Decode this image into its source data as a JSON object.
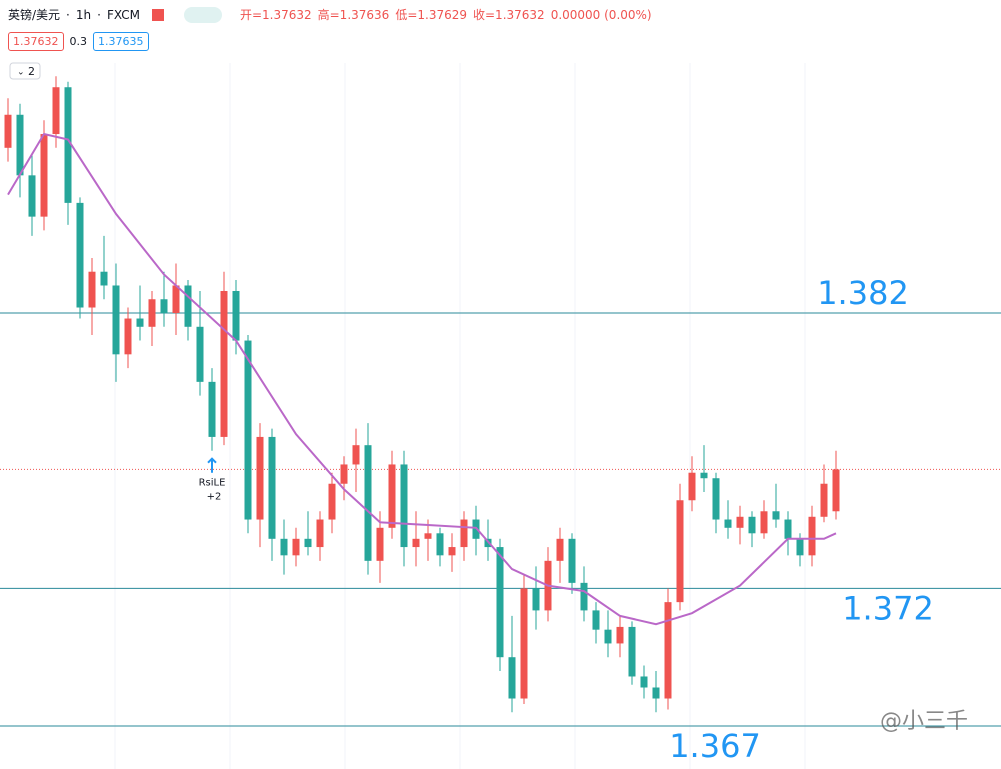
{
  "toolbar": {
    "symbol": "英镑/美元",
    "interval": "1h",
    "source": "FXCM",
    "ohlc": [
      "开=1.37632",
      "高=1.37636",
      "低=1.37629",
      "收=1.37632",
      "0.00000 (0.00%)"
    ],
    "sell": "1.37632",
    "spread": "0.3",
    "buy": "1.37635",
    "indicator_count": "2"
  },
  "chart_data": {
    "type": "candlestick",
    "up_color": "#ef5350",
    "down_color": "#26a69a",
    "ylim": [
      1.36544,
      1.39108
    ],
    "candles": [
      [
        1.388,
        1.3898,
        1.3875,
        1.3892
      ],
      [
        1.3892,
        1.3896,
        1.3862,
        1.387
      ],
      [
        1.387,
        1.3878,
        1.3848,
        1.3855
      ],
      [
        1.3855,
        1.389,
        1.385,
        1.3885
      ],
      [
        1.3885,
        1.3906,
        1.388,
        1.3902
      ],
      [
        1.3902,
        1.3904,
        1.3852,
        1.386
      ],
      [
        1.386,
        1.3862,
        1.3818,
        1.3822
      ],
      [
        1.3822,
        1.384,
        1.3812,
        1.3835
      ],
      [
        1.3835,
        1.3848,
        1.3825,
        1.383
      ],
      [
        1.383,
        1.3838,
        1.3795,
        1.3805
      ],
      [
        1.3805,
        1.3822,
        1.38,
        1.3818
      ],
      [
        1.3818,
        1.383,
        1.381,
        1.3815
      ],
      [
        1.3815,
        1.3828,
        1.3808,
        1.3825
      ],
      [
        1.3825,
        1.3835,
        1.3815,
        1.382
      ],
      [
        1.382,
        1.3838,
        1.3812,
        1.383
      ],
      [
        1.383,
        1.3832,
        1.381,
        1.3815
      ],
      [
        1.3815,
        1.3828,
        1.379,
        1.3795
      ],
      [
        1.3795,
        1.38,
        1.377,
        1.3775
      ],
      [
        1.3775,
        1.3835,
        1.3772,
        1.3828
      ],
      [
        1.3828,
        1.3832,
        1.3805,
        1.381
      ],
      [
        1.381,
        1.3812,
        1.374,
        1.3745
      ],
      [
        1.3745,
        1.378,
        1.3735,
        1.3775
      ],
      [
        1.3775,
        1.3778,
        1.373,
        1.3738
      ],
      [
        1.3738,
        1.3745,
        1.3725,
        1.3732
      ],
      [
        1.3732,
        1.3742,
        1.3728,
        1.3738
      ],
      [
        1.3738,
        1.3748,
        1.3732,
        1.3735
      ],
      [
        1.3735,
        1.3748,
        1.373,
        1.3745
      ],
      [
        1.3745,
        1.3762,
        1.374,
        1.3758
      ],
      [
        1.3758,
        1.3768,
        1.3752,
        1.3765
      ],
      [
        1.3765,
        1.3778,
        1.3755,
        1.3772
      ],
      [
        1.3772,
        1.378,
        1.3725,
        1.373
      ],
      [
        1.373,
        1.3748,
        1.3722,
        1.3742
      ],
      [
        1.3742,
        1.377,
        1.3738,
        1.3765
      ],
      [
        1.3765,
        1.377,
        1.3728,
        1.3735
      ],
      [
        1.3735,
        1.3748,
        1.3728,
        1.3738
      ],
      [
        1.3738,
        1.3745,
        1.373,
        1.374
      ],
      [
        1.374,
        1.3742,
        1.3728,
        1.3732
      ],
      [
        1.3732,
        1.374,
        1.3726,
        1.3735
      ],
      [
        1.3735,
        1.3748,
        1.373,
        1.3745
      ],
      [
        1.3745,
        1.375,
        1.3732,
        1.3738
      ],
      [
        1.3738,
        1.3745,
        1.373,
        1.3735
      ],
      [
        1.3735,
        1.3738,
        1.369,
        1.3695
      ],
      [
        1.3695,
        1.371,
        1.3675,
        1.368
      ],
      [
        1.368,
        1.3725,
        1.3678,
        1.372
      ],
      [
        1.372,
        1.3728,
        1.3705,
        1.3712
      ],
      [
        1.3712,
        1.3735,
        1.3708,
        1.373
      ],
      [
        1.373,
        1.3742,
        1.3722,
        1.3738
      ],
      [
        1.3738,
        1.374,
        1.3718,
        1.3722
      ],
      [
        1.3722,
        1.3728,
        1.3708,
        1.3712
      ],
      [
        1.3712,
        1.3715,
        1.37,
        1.3705
      ],
      [
        1.3705,
        1.3712,
        1.3695,
        1.37
      ],
      [
        1.37,
        1.371,
        1.3695,
        1.3706
      ],
      [
        1.3706,
        1.3708,
        1.3685,
        1.3688
      ],
      [
        1.3688,
        1.3692,
        1.368,
        1.3684
      ],
      [
        1.3684,
        1.369,
        1.3675,
        1.368
      ],
      [
        1.368,
        1.372,
        1.3676,
        1.3715
      ],
      [
        1.3715,
        1.3758,
        1.3712,
        1.3752
      ],
      [
        1.3752,
        1.3768,
        1.3748,
        1.3762
      ],
      [
        1.3762,
        1.3772,
        1.3755,
        1.376
      ],
      [
        1.376,
        1.3762,
        1.374,
        1.3745
      ],
      [
        1.3745,
        1.3752,
        1.3738,
        1.3742
      ],
      [
        1.3742,
        1.375,
        1.3736,
        1.3746
      ],
      [
        1.3746,
        1.3748,
        1.3735,
        1.374
      ],
      [
        1.374,
        1.3752,
        1.3738,
        1.3748
      ],
      [
        1.3748,
        1.3758,
        1.3742,
        1.3745
      ],
      [
        1.3745,
        1.3748,
        1.3732,
        1.3738
      ],
      [
        1.3738,
        1.374,
        1.3728,
        1.3732
      ],
      [
        1.3732,
        1.375,
        1.3728,
        1.3746
      ],
      [
        1.3746,
        1.3765,
        1.3744,
        1.3758
      ],
      [
        1.3748,
        1.377,
        1.3745,
        1.37632
      ]
    ],
    "ma": {
      "color": "#ba68c8",
      "x": [
        0,
        3,
        5,
        9,
        13,
        19,
        24,
        28,
        31,
        35,
        39,
        42,
        45,
        48,
        51,
        54,
        57,
        61,
        65,
        68,
        69
      ],
      "values": [
        1.3863,
        1.3885,
        1.3883,
        1.3856,
        1.3834,
        1.381,
        1.3776,
        1.3756,
        1.3744,
        1.3743,
        1.3742,
        1.3727,
        1.3721,
        1.3719,
        1.371,
        1.3707,
        1.3711,
        1.3721,
        1.3738,
        1.3738,
        1.374
      ]
    },
    "last_price": 1.37632,
    "last_price_color": "#ef5350",
    "levels": [
      1.382,
      1.372,
      1.367
    ],
    "level_color": "#2a8a9a",
    "level_label_color": "#2196f3",
    "signal": {
      "text": "RsiLE",
      "count": "+2"
    },
    "watermark": "@小三千"
  }
}
